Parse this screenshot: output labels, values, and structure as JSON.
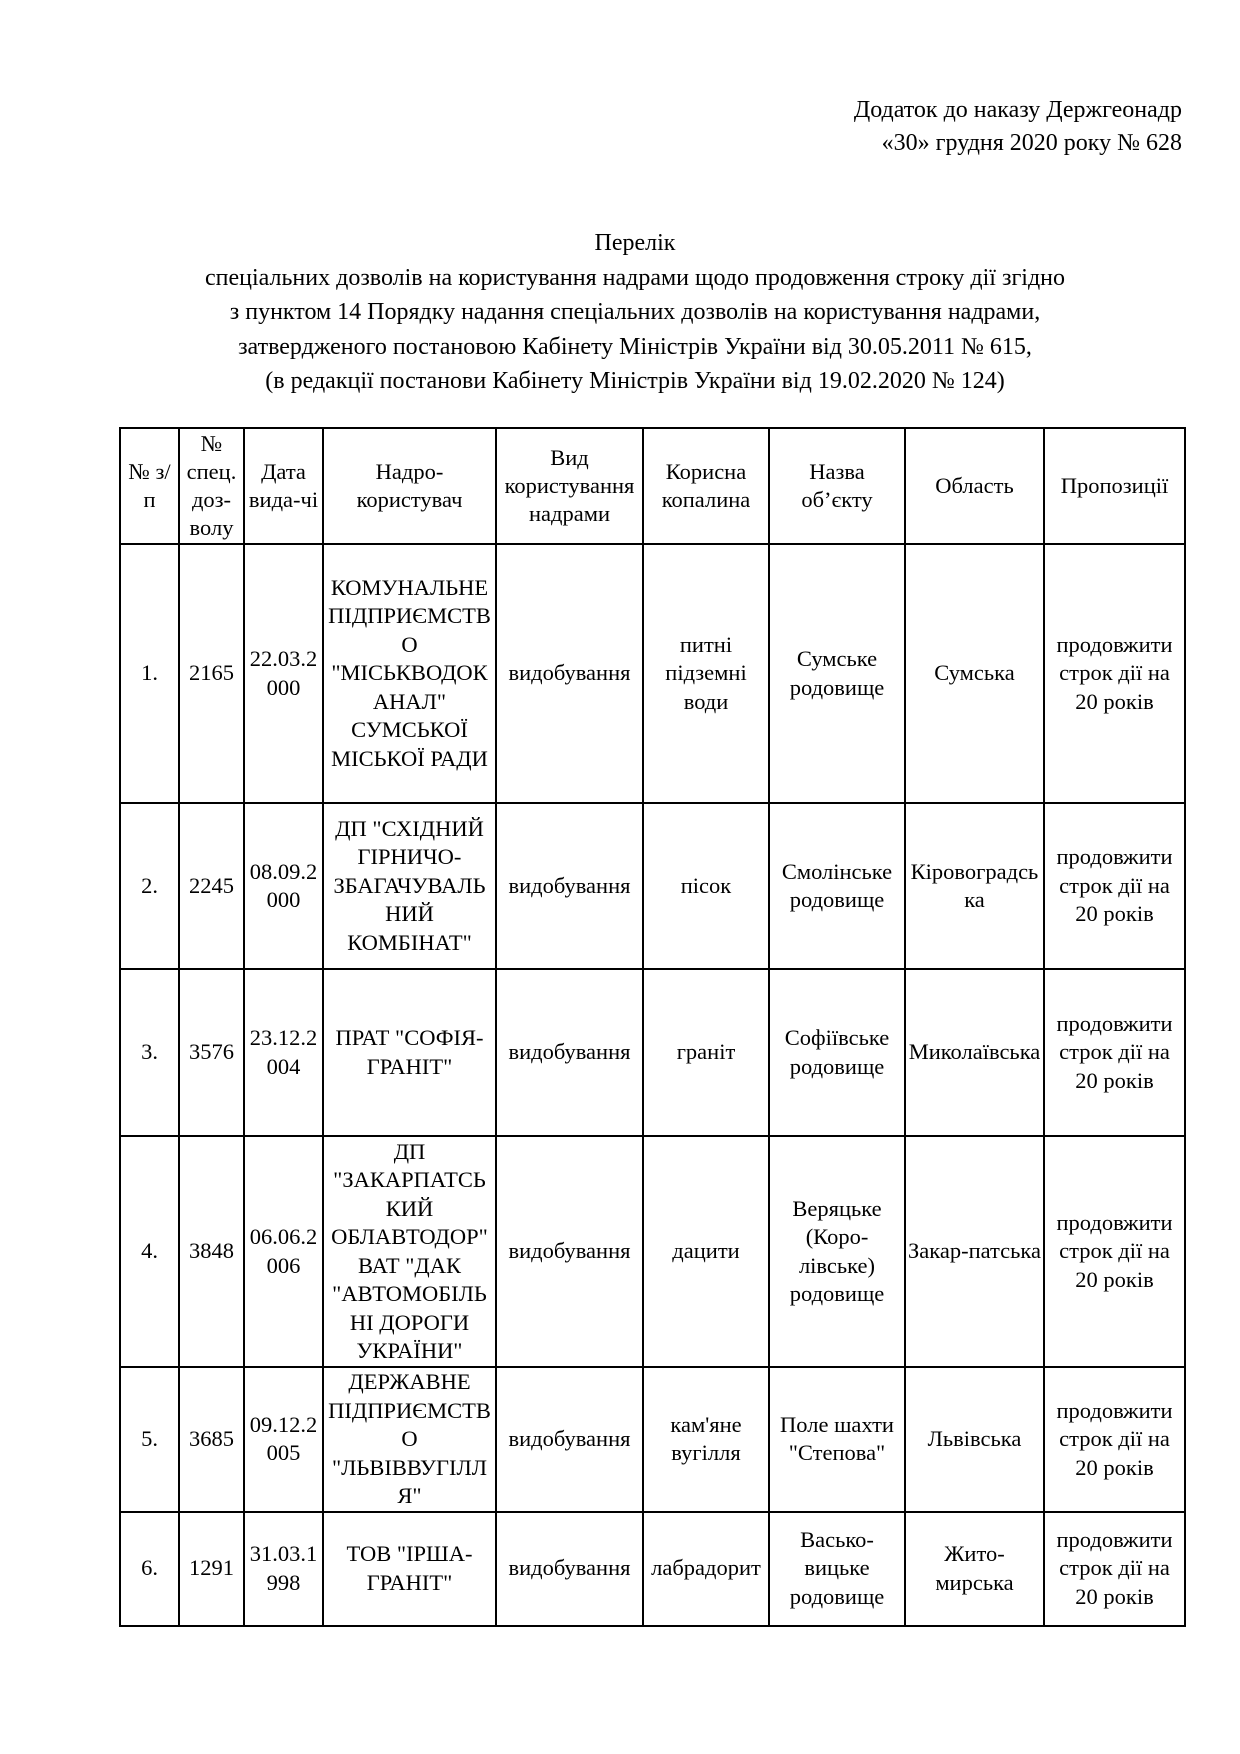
{
  "appendix": {
    "line1": "Додаток до наказу Держгеонадр",
    "line2": "«30» грудня 2020 року № 628"
  },
  "title": {
    "line1": "Перелік",
    "line2": "спеціальних дозволів на користування надрами щодо продовження строку дії згідно",
    "line3": "з пунктом 14 Порядку надання спеціальних дозволів на користування надрами,",
    "line4": "затвердженого постановою Кабінету Міністрів України від 30.05.2011 № 615,",
    "line5": "(в редакції постанови Кабінету Міністрів України  від 19.02.2020 № 124)"
  },
  "table": {
    "headers": [
      "№ з/п",
      "№ спец. доз-волу",
      "Дата вида-чі",
      "Надро-користувач",
      "Вид користування надрами",
      "Корисна копалина",
      "Назва об’єкту",
      "Область",
      "Пропозиції"
    ],
    "rows": [
      [
        "1.",
        "2165",
        "22.03.2000",
        "КОМУНАЛЬНЕ ПІДПРИЄМСТВО \"МІСЬКВОДОКАНАЛ\" СУМСЬКОЇ МІСЬКОЇ РАДИ",
        "видобування",
        "питні підземні води",
        "Сумське родовище",
        "Сумська",
        "продовжити строк дії на 20 років"
      ],
      [
        "2.",
        "2245",
        "08.09.2000",
        "ДП \"СХІДНИЙ ГІРНИЧО-ЗБАГАЧУВАЛЬНИЙ КОМБІНАТ\"",
        "видобування",
        "пісок",
        "Смолінське родовище",
        "Кіровоградська",
        "продовжити строк дії на 20 років"
      ],
      [
        "3.",
        "3576",
        "23.12.2004",
        "ПРАТ \"СОФІЯ-ГРАНІТ\"",
        "видобування",
        "граніт",
        "Софіївське родовище",
        "Миколаївська",
        "продовжити строк дії на 20 років"
      ],
      [
        "4.",
        "3848",
        "06.06.2006",
        "ДП \"ЗАКАРПАТСЬКИЙ ОБЛАВТОДОР\" ВАТ \"ДАК \"АВТОМОБІЛЬНІ ДОРОГИ УКРАЇНИ\"",
        "видобування",
        "дацити",
        "Веряцьке (Коро-лівське) родовище",
        "Закар-патська",
        "продовжити строк дії на 20 років"
      ],
      [
        "5.",
        "3685",
        "09.12.2005",
        "ДЕРЖАВНЕ ПІДПРИЄМСТВО \"ЛЬВІВВУГІЛЛЯ\"",
        "видобування",
        "кам'яне вугілля",
        "Поле шахти \"Степова\"",
        "Львівська",
        "продовжити строк дії на 20 років"
      ],
      [
        "6.",
        "1291",
        "31.03.1998",
        "ТОВ \"ІРША-ГРАНІТ\"",
        "видобування",
        "лабрадорит",
        "Васько-вицьке родовище",
        "Жито-мирська",
        "продовжити строк дії на 20 років"
      ]
    ]
  }
}
